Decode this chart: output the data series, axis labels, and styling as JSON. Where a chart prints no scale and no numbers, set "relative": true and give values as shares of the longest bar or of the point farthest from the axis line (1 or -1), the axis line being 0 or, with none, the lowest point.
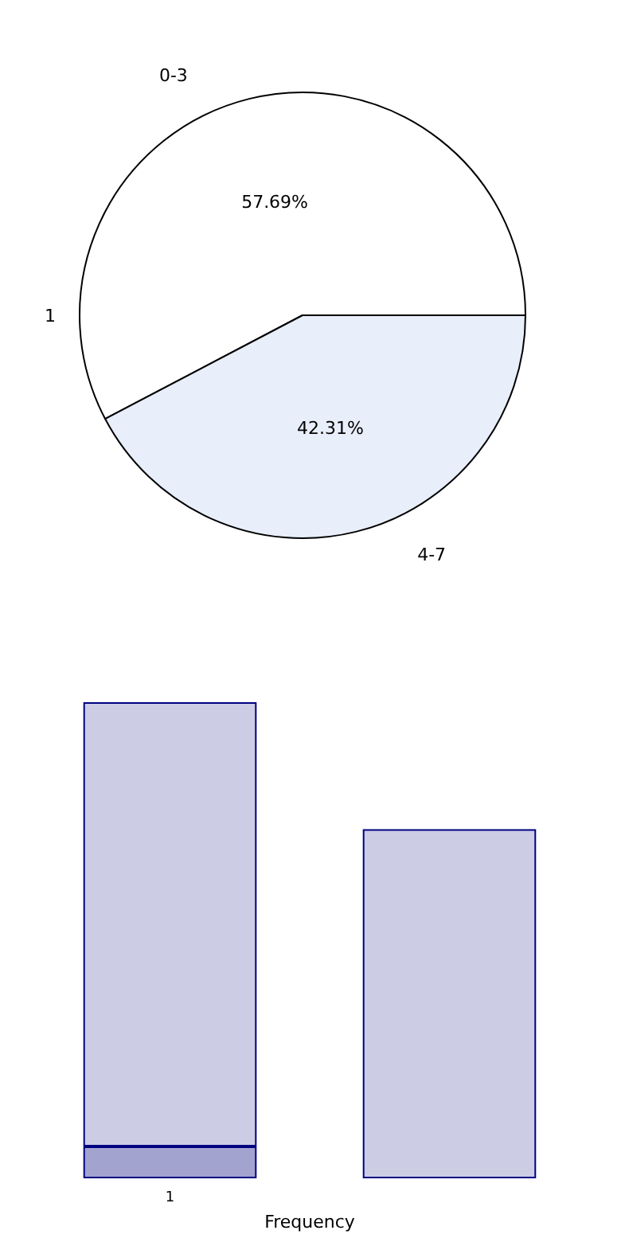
{
  "chart_data": [
    {
      "type": "pie",
      "categories": [
        "0-3",
        "4-7"
      ],
      "values": [
        57.69,
        42.31
      ],
      "colors": [
        "#ffffff",
        "#e8eefa"
      ],
      "value_labels": [
        "57.69%",
        "42.31%"
      ],
      "annotations": [
        "1"
      ]
    },
    {
      "type": "bar",
      "stacked": true,
      "relative": true,
      "categories": [
        "1",
        null
      ],
      "xlabel": "Frequency",
      "series": [
        {
          "color": "#a3a3cf",
          "values": [
            0.0667,
            null
          ]
        },
        {
          "color": "#ccccE5",
          "values": [
            0.9333,
            0.7333
          ]
        }
      ]
    }
  ]
}
